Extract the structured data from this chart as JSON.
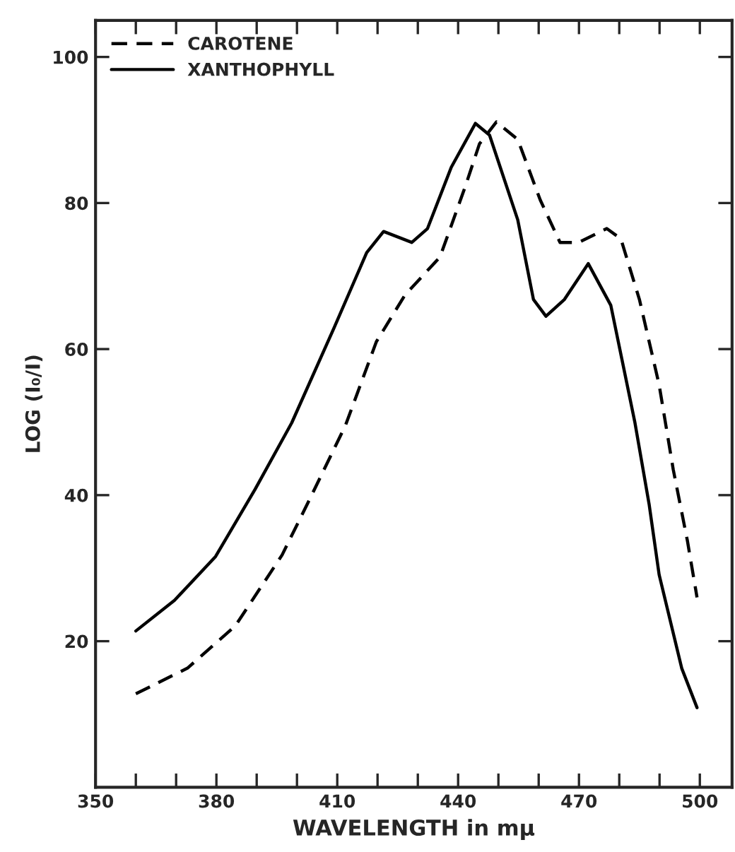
{
  "chart_data": {
    "type": "line",
    "xlabel": "WAVELENGTH in mµ",
    "ylabel": "LOG (I₀/I)",
    "xlim": [
      350,
      508
    ],
    "ylim": [
      0,
      105
    ],
    "xticks": [
      350,
      {
        "value": 360,
        "label": null
      },
      {
        "value": 370,
        "label": null
      },
      380,
      {
        "value": 390,
        "label": null
      },
      {
        "value": 400,
        "label": null
      },
      410,
      {
        "value": 420,
        "label": null
      },
      {
        "value": 430,
        "label": null
      },
      440,
      {
        "value": 450,
        "label": null
      },
      {
        "value": 460,
        "label": null
      },
      470,
      {
        "value": 480,
        "label": null
      },
      {
        "value": 490,
        "label": null
      },
      500
    ],
    "yticks": [
      20,
      40,
      60,
      80,
      100
    ],
    "grid": false,
    "legend": "top left",
    "marker": "none",
    "series": [
      {
        "name": "CAROTENE",
        "color": "#000000",
        "line_style": "dashed",
        "x": [
          360,
          372.8,
          384.7,
          396.3,
          403.3,
          412,
          419.7,
          426.8,
          435.5,
          441.8,
          445.3,
          449.5,
          454.8,
          460.4,
          465.3,
          469.9,
          476.9,
          480.4,
          485,
          489.9,
          493.4,
          496.9,
          499.3
        ],
        "values": [
          12.8,
          16.3,
          22.1,
          31.8,
          39.6,
          49.5,
          61.0,
          67.4,
          72.6,
          82.3,
          88.1,
          91.1,
          88.7,
          80.4,
          74.6,
          74.6,
          76.5,
          75.1,
          66.8,
          55.1,
          43.5,
          33.8,
          26.0
        ]
      },
      {
        "name": "XANTHOPHYLL",
        "color": "#000000",
        "line_style": "solid",
        "x": [
          360,
          369.6,
          379.8,
          389.6,
          398.7,
          409.2,
          417.3,
          421.5,
          428.5,
          432.4,
          438.3,
          444.3,
          447.8,
          454.8,
          458.7,
          461.8,
          466.4,
          472.3,
          477.9,
          483.9,
          487.4,
          489.9,
          495.5,
          499.3
        ],
        "values": [
          21.4,
          25.6,
          31.6,
          40.8,
          49.9,
          62.9,
          73.2,
          76.1,
          74.6,
          76.5,
          84.9,
          90.9,
          89.3,
          77.7,
          66.8,
          64.5,
          66.8,
          71.7,
          66.0,
          49.9,
          38.8,
          29.1,
          16.3,
          10.9
        ]
      }
    ]
  }
}
